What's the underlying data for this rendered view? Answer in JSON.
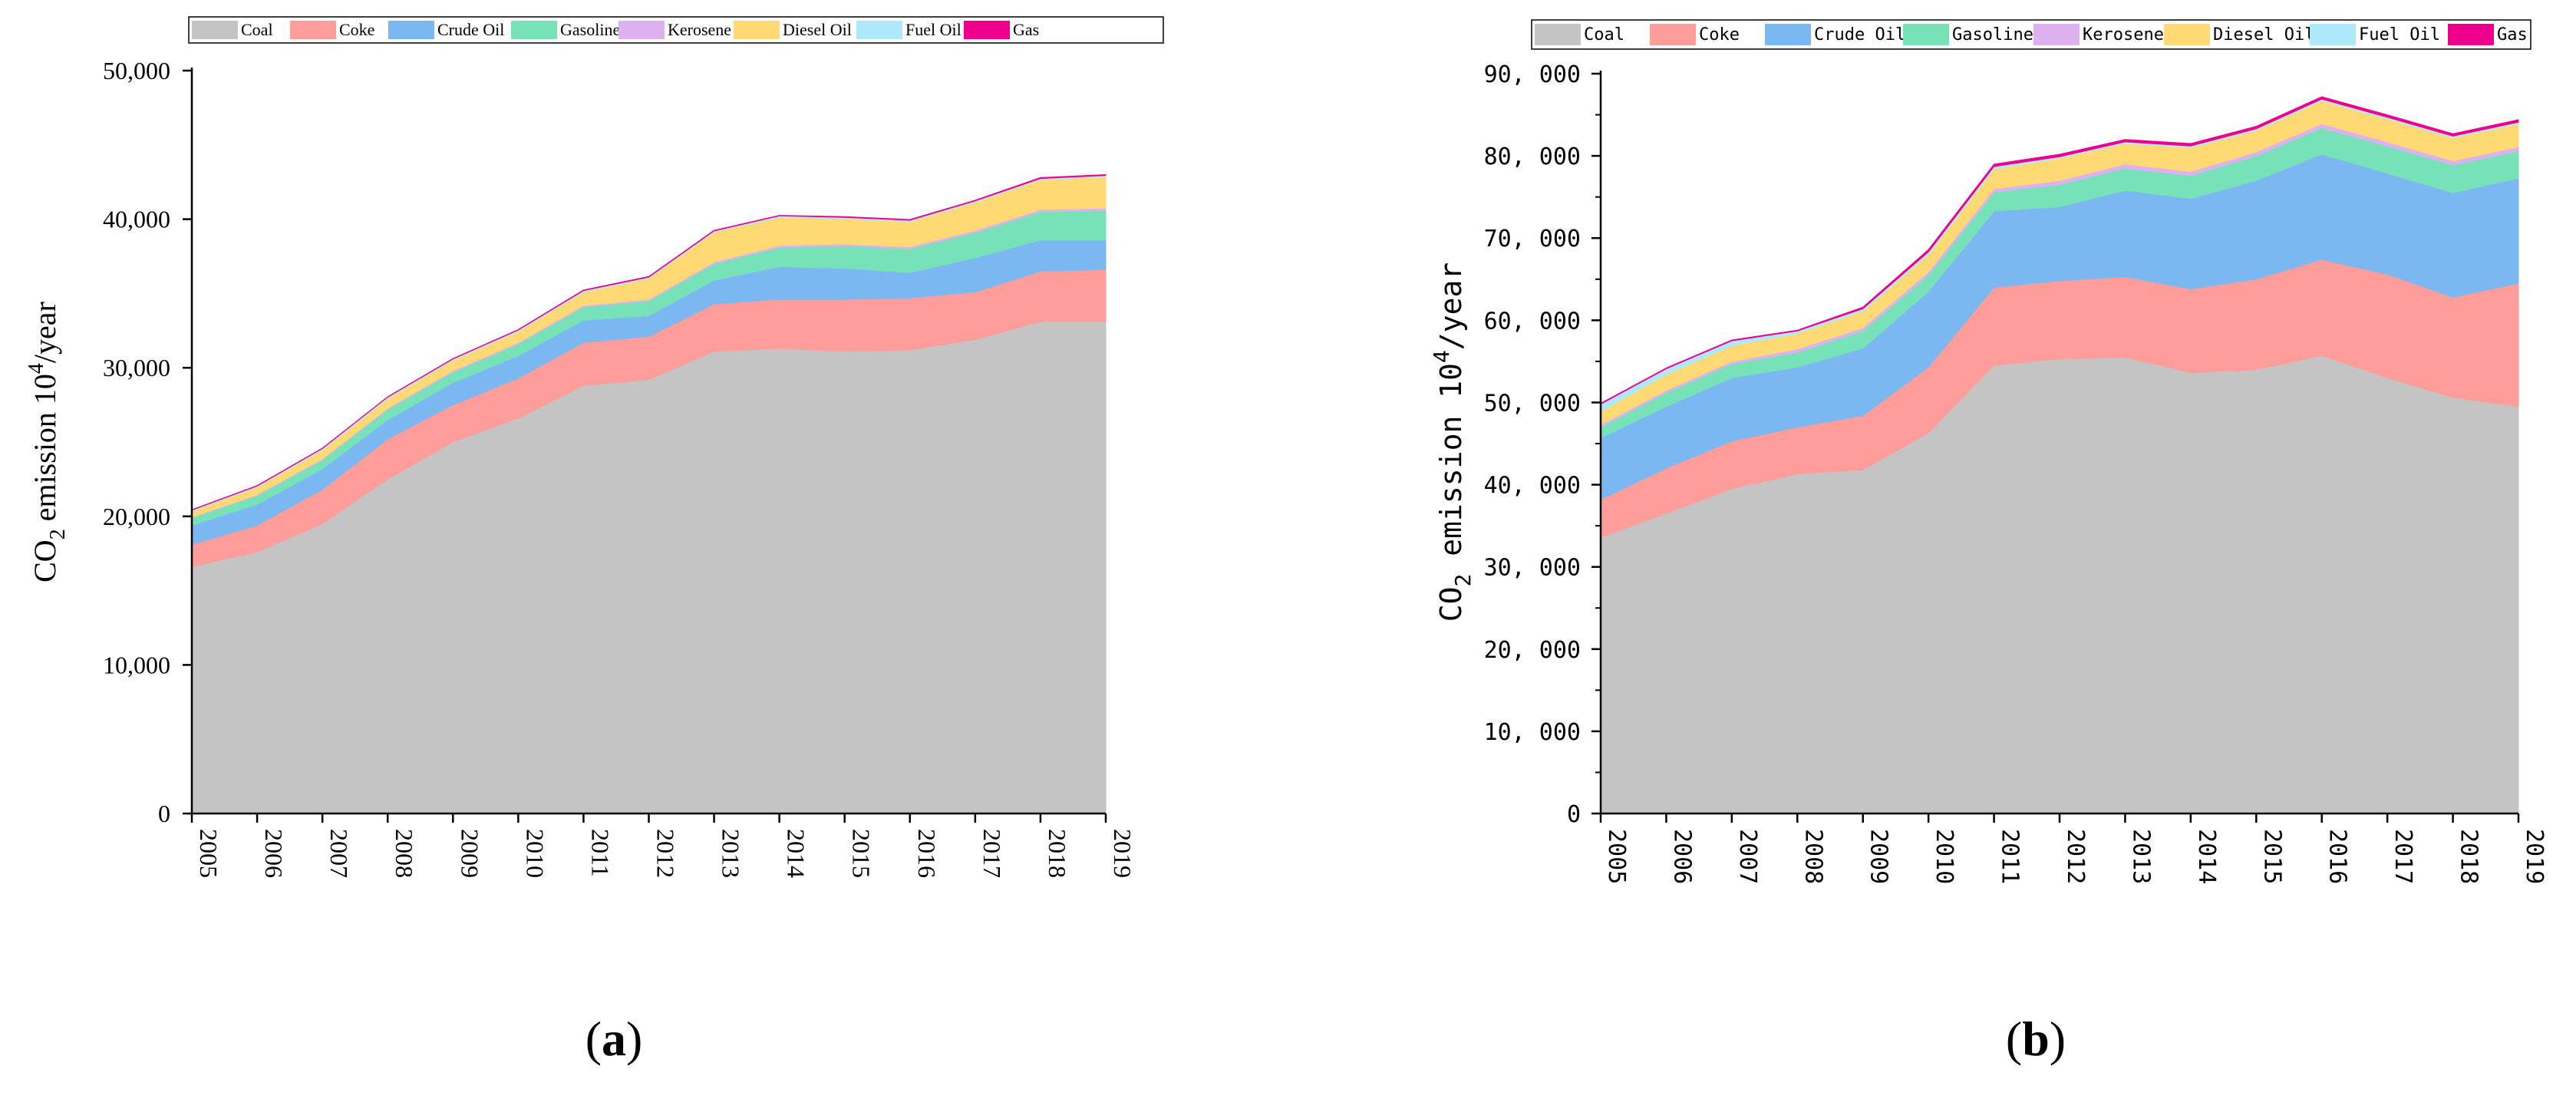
{
  "chart_data": [
    {
      "type": "area",
      "stacked": true,
      "panel_label": "(a)",
      "panel_letter": "a",
      "title": "",
      "xlabel": "",
      "ylabel_prefix": "CO",
      "ylabel_sub": "2",
      "ylabel_mid": " emission 10",
      "ylabel_sup": "4",
      "ylabel_suffix": "/year",
      "ylim": [
        0,
        50000
      ],
      "yticks": [
        "0",
        "10,000",
        "20,000",
        "30,000",
        "40,000",
        "50,000"
      ],
      "x": [
        "2005",
        "2006",
        "2007",
        "2008",
        "2009",
        "2010",
        "2011",
        "2012",
        "2013",
        "2014",
        "2015",
        "2016",
        "2017",
        "2018",
        "2019"
      ],
      "legend_position": "top",
      "series": [
        {
          "name": "Coal",
          "color": "#c4c4c4",
          "values": [
            16600,
            17600,
            19500,
            22500,
            25000,
            26600,
            28800,
            29200,
            31100,
            31300,
            31100,
            31200,
            31900,
            33100,
            33100
          ]
        },
        {
          "name": "Coke",
          "color": "#ff9d9a",
          "values": [
            1500,
            1800,
            2300,
            2700,
            2500,
            2700,
            2900,
            2900,
            3200,
            3300,
            3500,
            3500,
            3200,
            3400,
            3500
          ]
        },
        {
          "name": "Crude Oil",
          "color": "#7bb8f2",
          "values": [
            1300,
            1400,
            1400,
            1300,
            1500,
            1500,
            1500,
            1400,
            1600,
            2200,
            2100,
            1700,
            2300,
            2100,
            2000
          ]
        },
        {
          "name": "Gasoline",
          "color": "#77e2b8",
          "values": [
            500,
            600,
            600,
            700,
            700,
            800,
            900,
            1000,
            1100,
            1300,
            1500,
            1600,
            1700,
            1900,
            2000
          ]
        },
        {
          "name": "Kerosene",
          "color": "#ddb0f0",
          "values": [
            50,
            60,
            70,
            80,
            100,
            100,
            100,
            110,
            120,
            130,
            130,
            140,
            140,
            150,
            150
          ]
        },
        {
          "name": "Diesel Oil",
          "color": "#ffd973",
          "values": [
            400,
            500,
            600,
            650,
            700,
            750,
            900,
            1400,
            2000,
            1900,
            1700,
            1700,
            1900,
            2000,
            2100
          ]
        },
        {
          "name": "Fuel Oil",
          "color": "#aee8fb",
          "values": [
            70,
            80,
            90,
            90,
            90,
            90,
            90,
            90,
            90,
            90,
            90,
            90,
            90,
            90,
            90
          ]
        },
        {
          "name": "Gas",
          "color": "#ec008c",
          "values": [
            30,
            30,
            30,
            30,
            30,
            30,
            40,
            40,
            40,
            40,
            50,
            50,
            50,
            60,
            60
          ]
        }
      ]
    },
    {
      "type": "area",
      "stacked": true,
      "panel_label": "(b)",
      "panel_letter": "b",
      "title": "",
      "xlabel": "",
      "ylabel_prefix": "CO",
      "ylabel_sub": "2",
      "ylabel_mid": " emission 10",
      "ylabel_sup": "4",
      "ylabel_suffix": "/year",
      "ylim": [
        0,
        90000
      ],
      "yticks": [
        "0",
        "10, 000",
        "20, 000",
        "30, 000",
        "40, 000",
        "50, 000",
        "60, 000",
        "70, 000",
        "80, 000",
        "90, 000"
      ],
      "x": [
        "2005",
        "2006",
        "2007",
        "2008",
        "2009",
        "2010",
        "2011",
        "2012",
        "2013",
        "2014",
        "2015",
        "2016",
        "2017",
        "2018",
        "2019"
      ],
      "legend_position": "top",
      "series": [
        {
          "name": "Coal",
          "color": "#c4c4c4",
          "values": [
            33600,
            36500,
            39500,
            41300,
            41800,
            46300,
            54500,
            55300,
            55500,
            53600,
            54000,
            55700,
            53000,
            50600,
            49500
          ]
        },
        {
          "name": "Coke",
          "color": "#ff9d9a",
          "values": [
            4600,
            5500,
            5800,
            5700,
            6600,
            8000,
            9500,
            9500,
            9800,
            10200,
            11000,
            11700,
            12600,
            12200,
            15000
          ]
        },
        {
          "name": "Crude Oil",
          "color": "#7bb8f2",
          "values": [
            7500,
            7500,
            7700,
            7300,
            8200,
            9200,
            9300,
            9000,
            10500,
            11000,
            12000,
            12800,
            12300,
            12700,
            12800
          ]
        },
        {
          "name": "Gasoline",
          "color": "#77e2b8",
          "values": [
            1300,
            1700,
            1700,
            1800,
            2100,
            2000,
            2300,
            2700,
            2700,
            2800,
            3000,
            3200,
            3300,
            3400,
            3300
          ]
        },
        {
          "name": "Kerosene",
          "color": "#ddb0f0",
          "values": [
            300,
            300,
            300,
            400,
            400,
            400,
            400,
            500,
            500,
            500,
            500,
            500,
            500,
            500,
            500
          ]
        },
        {
          "name": "Diesel Oil",
          "color": "#ffd973",
          "values": [
            1600,
            1900,
            1900,
            1900,
            2000,
            2100,
            2400,
            2700,
            2500,
            2900,
            2600,
            2800,
            2800,
            2800,
            2800
          ]
        },
        {
          "name": "Fuel Oil",
          "color": "#aee8fb",
          "values": [
            900,
            700,
            600,
            300,
            300,
            300,
            300,
            200,
            200,
            200,
            200,
            200,
            200,
            200,
            200
          ]
        },
        {
          "name": "Gas",
          "color": "#ec008c",
          "values": [
            100,
            100,
            100,
            100,
            200,
            300,
            300,
            300,
            300,
            300,
            300,
            300,
            300,
            300,
            300
          ]
        }
      ]
    }
  ]
}
